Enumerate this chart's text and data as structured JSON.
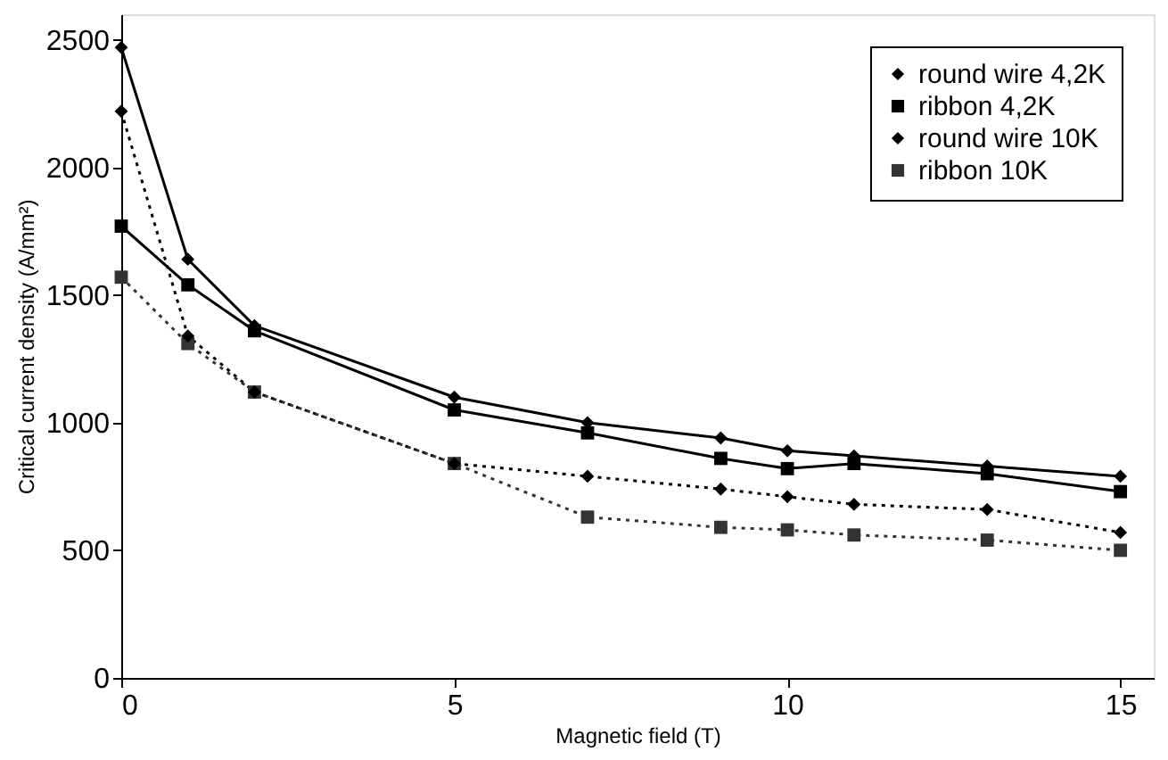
{
  "chart_data": {
    "type": "line",
    "xlabel": "Magnetic field (T)",
    "ylabel": "Critical current density (A/mm²)",
    "x": [
      0,
      1,
      2,
      5,
      7,
      9,
      10,
      11,
      13,
      15
    ],
    "series": [
      {
        "name": "round wire 4,2K",
        "color": "#000000",
        "marker": "diamond",
        "line_style": "solid",
        "values": [
          2470,
          1640,
          1380,
          1100,
          1000,
          940,
          890,
          870,
          830,
          790
        ]
      },
      {
        "name": "ribbon 4,2K",
        "color": "#000000",
        "marker": "square",
        "line_style": "solid",
        "values": [
          1770,
          1540,
          1360,
          1050,
          960,
          860,
          820,
          840,
          800,
          730
        ]
      },
      {
        "name": "round wire 10K",
        "color": "#000000",
        "marker": "diamond",
        "line_style": "dotted",
        "values": [
          2220,
          1340,
          1120,
          840,
          790,
          740,
          710,
          680,
          660,
          570
        ]
      },
      {
        "name": "ribbon 10K",
        "color": "#333333",
        "marker": "square",
        "line_style": "dotted",
        "values": [
          1570,
          1310,
          1120,
          840,
          630,
          590,
          580,
          560,
          540,
          500
        ]
      }
    ],
    "xlim": [
      0,
      15.5
    ],
    "xticks": [
      0,
      5,
      10,
      15
    ],
    "ylim": [
      0,
      2600
    ],
    "yticks": [
      0,
      500,
      1000,
      1500,
      2000,
      2500
    ],
    "grid": false,
    "legend": "top right"
  }
}
